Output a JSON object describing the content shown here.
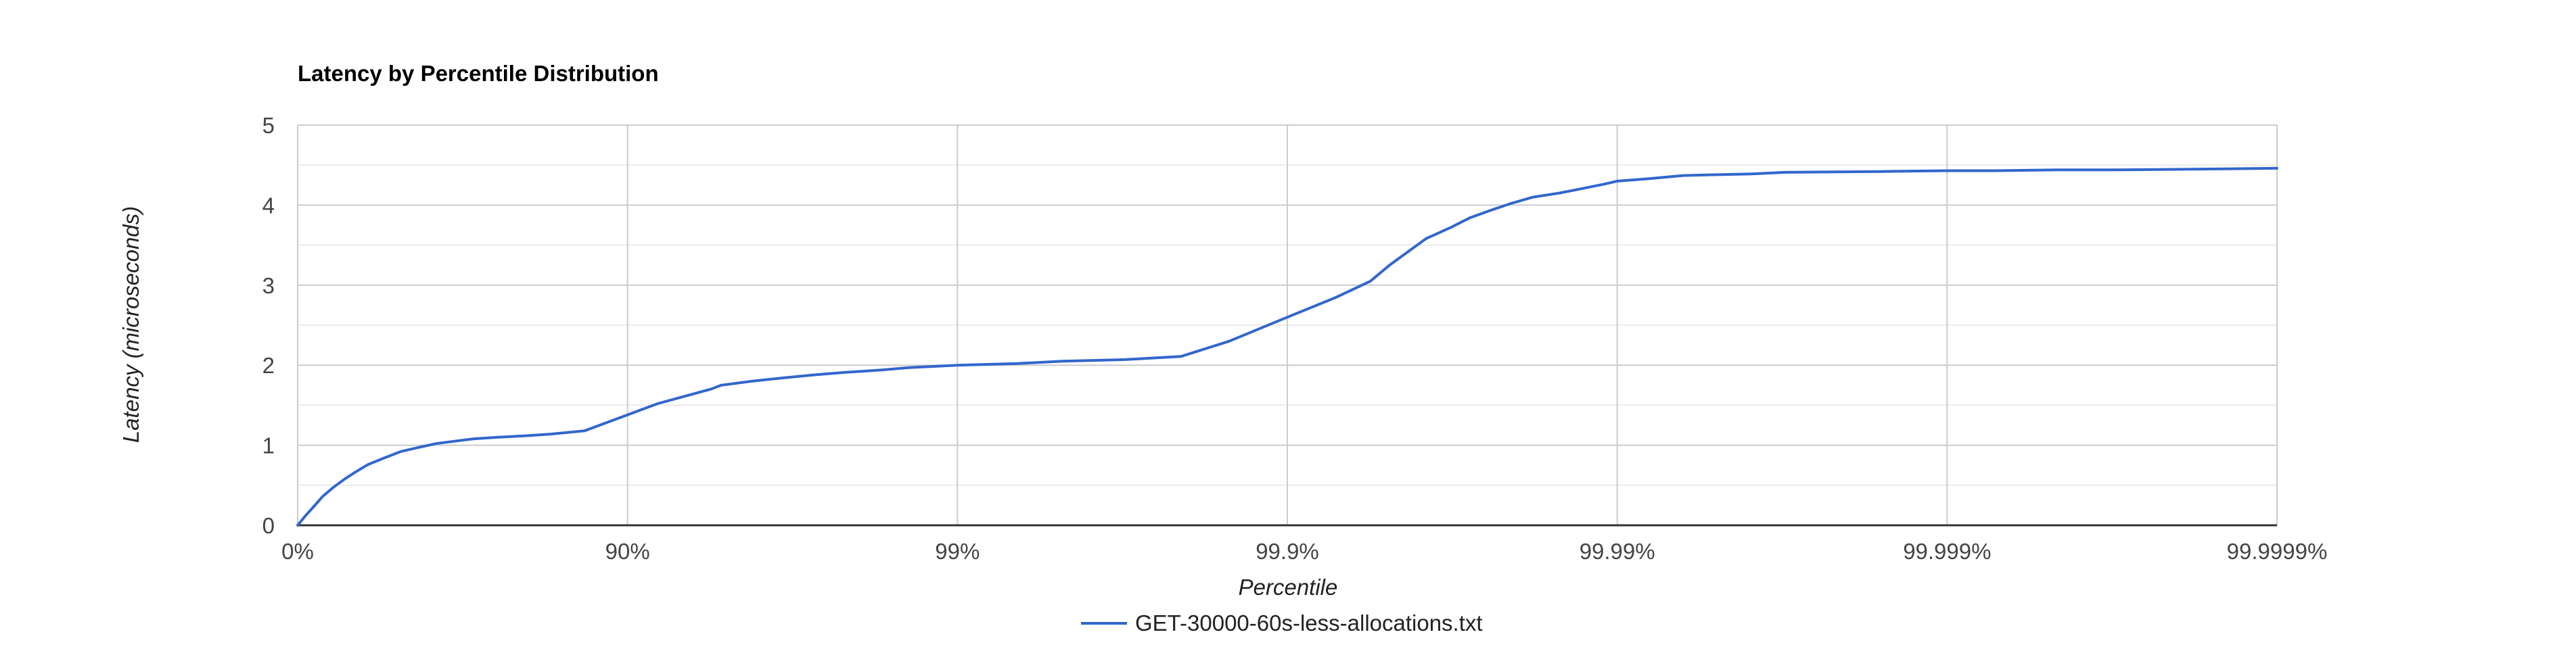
{
  "chart_data": {
    "type": "line",
    "title": "Latency by Percentile Distribution",
    "xlabel": "Percentile",
    "ylabel": "Latency (microseconds)",
    "x_scale": "inverse-log (1/(1-percentile))",
    "x_ticks": [
      "0%",
      "90%",
      "99%",
      "99.9%",
      "99.99%",
      "99.999%",
      "99.9999%"
    ],
    "ylim": [
      0,
      5
    ],
    "y_ticks": [
      "0",
      "1",
      "2",
      "3",
      "4",
      "5"
    ],
    "grid": true,
    "legend_position": "bottom",
    "colors": {
      "series": "#3366cc",
      "major_grid": "#cccccc",
      "minor_grid": "#ebebeb",
      "baseline": "#333333"
    },
    "series": [
      {
        "name": "GET-30000-60s-less-allocations.txt",
        "x": [
          "0%",
          "5.33%",
          "10.9%",
          "16.0%",
          "22.4%",
          "28.1%",
          "33.5%",
          "38.9%",
          "45.3%",
          "51.2%",
          "56.7%",
          "61.9%",
          "66.5%",
          "70.7%",
          "75.3%",
          "80.0%",
          "83.0%",
          "86.5%",
          "90%",
          "91.9%",
          "93.4%",
          "94.4%",
          "94.8%",
          "95.8%",
          "96.6%",
          "97.3%",
          "97.8%",
          "98.3%",
          "98.6%",
          "99%",
          "99.34%",
          "99.52%",
          "99.69%",
          "99.79%",
          "99.85%",
          "99.9%",
          "99.929%",
          "99.944%",
          "99.951%",
          "99.957%",
          "99.962%",
          "99.968%",
          "99.972%",
          "99.976%",
          "99.979%",
          "99.982%",
          "99.985%",
          "99.987%",
          "99.989%",
          "99.99%",
          "99.9920%",
          "99.9937%",
          "99.9950%",
          "99.9961%",
          "99.9969%",
          "99.9984%",
          "99.9990%",
          "99.99928%",
          "99.99954%",
          "99.99963%",
          "99.99969%",
          "99.99983%",
          "99.999929%"
        ],
        "values": [
          0.0,
          0.12,
          0.24,
          0.36,
          0.48,
          0.58,
          0.67,
          0.76,
          0.84,
          0.92,
          0.97,
          1.02,
          1.05,
          1.08,
          1.1,
          1.12,
          1.14,
          1.18,
          1.38,
          1.52,
          1.62,
          1.7,
          1.75,
          1.8,
          1.84,
          1.88,
          1.91,
          1.94,
          1.97,
          2.0,
          2.02,
          2.05,
          2.07,
          2.11,
          2.3,
          2.6,
          2.85,
          3.05,
          3.25,
          3.42,
          3.58,
          3.72,
          3.84,
          3.94,
          4.02,
          4.1,
          4.15,
          4.2,
          4.26,
          4.3,
          4.33,
          4.37,
          4.38,
          4.39,
          4.41,
          4.42,
          4.43,
          4.43,
          4.44,
          4.44,
          4.44,
          4.45,
          4.46
        ]
      }
    ]
  }
}
